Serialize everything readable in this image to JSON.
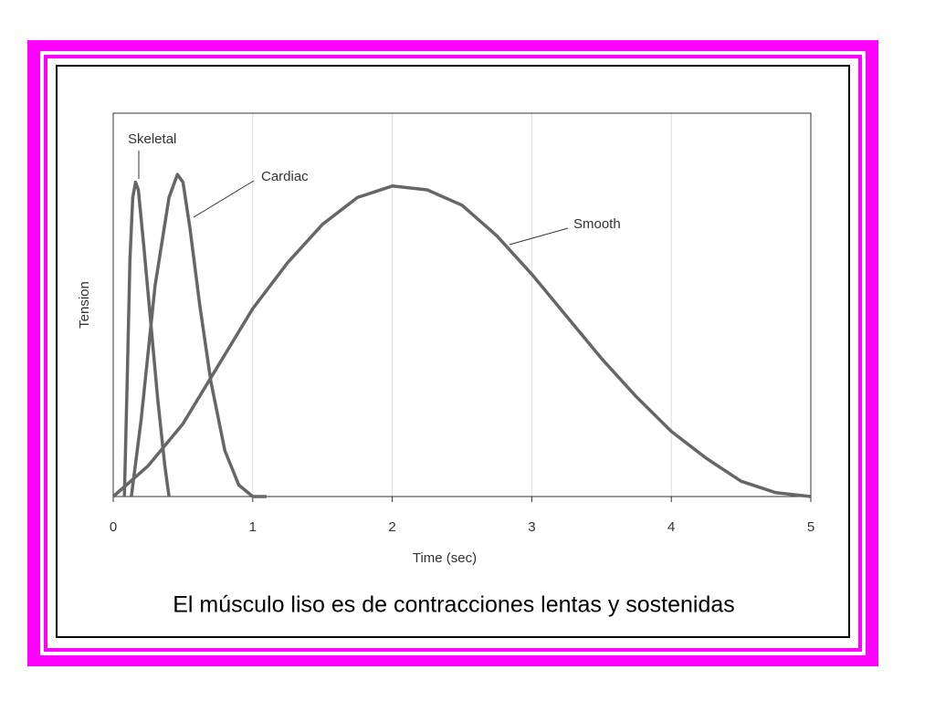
{
  "chart_data": {
    "type": "line",
    "x_label": "Time (sec)",
    "y_label": "Tension",
    "xlim": [
      0,
      5
    ],
    "xticks": [
      0,
      1,
      2,
      3,
      4,
      5
    ],
    "ylim": [
      0,
      1
    ],
    "grid": true,
    "series": [
      {
        "name": "Skeletal",
        "color": "#666666",
        "x": [
          0.08,
          0.1,
          0.12,
          0.14,
          0.16,
          0.18,
          0.22,
          0.27,
          0.32,
          0.37,
          0.4
        ],
        "values": [
          0,
          0.3,
          0.62,
          0.78,
          0.82,
          0.8,
          0.65,
          0.45,
          0.25,
          0.08,
          0
        ]
      },
      {
        "name": "Cardiac",
        "color": "#666666",
        "x": [
          0.13,
          0.2,
          0.3,
          0.4,
          0.46,
          0.5,
          0.55,
          0.62,
          0.7,
          0.8,
          0.9,
          1.0,
          1.1
        ],
        "values": [
          0,
          0.2,
          0.55,
          0.78,
          0.84,
          0.82,
          0.7,
          0.5,
          0.3,
          0.12,
          0.03,
          0,
          0
        ]
      },
      {
        "name": "Smooth",
        "color": "#666666",
        "x": [
          0,
          0.25,
          0.5,
          0.75,
          1.0,
          1.25,
          1.5,
          1.75,
          2.0,
          2.25,
          2.5,
          2.75,
          3.0,
          3.25,
          3.5,
          3.75,
          4.0,
          4.25,
          4.5,
          4.75,
          5
        ],
        "values": [
          0,
          0.08,
          0.19,
          0.34,
          0.49,
          0.61,
          0.71,
          0.78,
          0.81,
          0.8,
          0.76,
          0.68,
          0.58,
          0.47,
          0.36,
          0.26,
          0.17,
          0.1,
          0.04,
          0.01,
          0
        ]
      }
    ]
  },
  "caption": "El músculo liso es de contracciones lentas y sostenidas"
}
